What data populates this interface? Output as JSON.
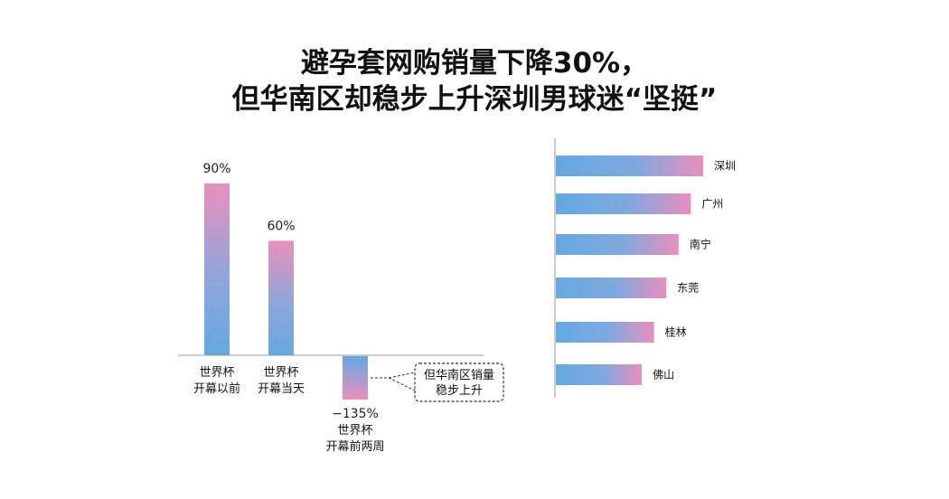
{
  "title": {
    "line1": "避孕套网购销量下降30%，",
    "line2": "但华南区却稳步上升深圳男球迷“坚挺”"
  },
  "chart_data": [
    {
      "type": "bar",
      "categories": [
        [
          "世界杯",
          "开幕以前"
        ],
        [
          "世界杯",
          "开幕当天"
        ],
        [
          "世界杯",
          "开幕前两周"
        ]
      ],
      "values": [
        90,
        60,
        -135
      ],
      "value_labels": [
        "90%",
        "60%",
        "−135%"
      ],
      "annotation": [
        "但华南区销量",
        "稳步上升"
      ],
      "colors": {
        "gradient_top": "#e98fbd",
        "gradient_bottom": "#64a9e0"
      }
    },
    {
      "type": "bar",
      "orientation": "horizontal",
      "categories": [
        "深圳",
        "广州",
        "南宁",
        "东莞",
        "桂林",
        "佛山"
      ],
      "values": [
        6,
        5.5,
        5,
        4.5,
        4,
        3.5
      ],
      "colors": {
        "gradient_left": "#64a9e0",
        "gradient_right": "#e98fbd"
      }
    }
  ]
}
